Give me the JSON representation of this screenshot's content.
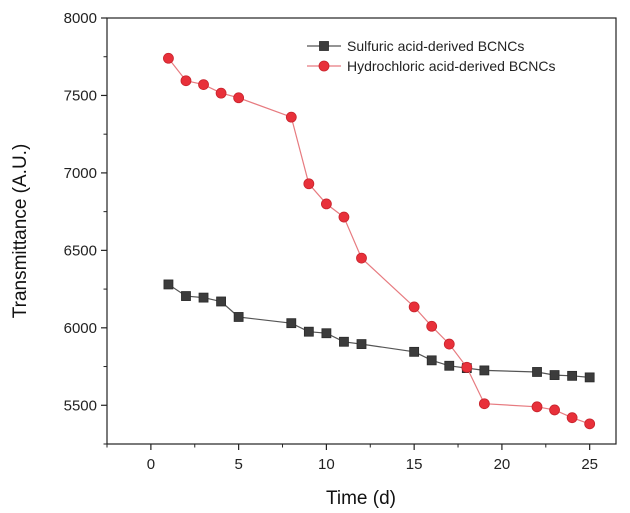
{
  "chart_data": {
    "type": "line",
    "xlabel": "Time (d)",
    "ylabel": "Transmittance (A.U.)",
    "xlim": [
      -2.5,
      26.5
    ],
    "ylim": [
      5250,
      8000
    ],
    "xticks": [
      "0",
      "5",
      "10",
      "15",
      "20",
      "25"
    ],
    "yticks": [
      "5500",
      "6000",
      "6500",
      "7000",
      "7500",
      "8000"
    ],
    "legend_position": "top-right",
    "grid": false,
    "series": [
      {
        "name": "Sulfuric acid-derived BCNCs",
        "marker": "square",
        "color": "#3c3c3c",
        "line_color": "#555555",
        "points": [
          {
            "x": 1,
            "y": 6280
          },
          {
            "x": 2,
            "y": 6205
          },
          {
            "x": 3,
            "y": 6195
          },
          {
            "x": 4,
            "y": 6170
          },
          {
            "x": 5,
            "y": 6070
          },
          {
            "x": 8,
            "y": 6030
          },
          {
            "x": 9,
            "y": 5975
          },
          {
            "x": 10,
            "y": 5965
          },
          {
            "x": 11,
            "y": 5910
          },
          {
            "x": 12,
            "y": 5895
          },
          {
            "x": 15,
            "y": 5845
          },
          {
            "x": 16,
            "y": 5790
          },
          {
            "x": 17,
            "y": 5755
          },
          {
            "x": 18,
            "y": 5740
          },
          {
            "x": 19,
            "y": 5725
          },
          {
            "x": 22,
            "y": 5715
          },
          {
            "x": 23,
            "y": 5695
          },
          {
            "x": 24,
            "y": 5690
          },
          {
            "x": 25,
            "y": 5680
          }
        ]
      },
      {
        "name": "Hydrochloric acid-derived BCNCs",
        "marker": "circle",
        "color": "#e8303a",
        "line_color": "#e77b80",
        "points": [
          {
            "x": 1,
            "y": 7740
          },
          {
            "x": 2,
            "y": 7595
          },
          {
            "x": 3,
            "y": 7570
          },
          {
            "x": 4,
            "y": 7515
          },
          {
            "x": 5,
            "y": 7485
          },
          {
            "x": 8,
            "y": 7360
          },
          {
            "x": 9,
            "y": 6930
          },
          {
            "x": 10,
            "y": 6800
          },
          {
            "x": 11,
            "y": 6715
          },
          {
            "x": 12,
            "y": 6450
          },
          {
            "x": 15,
            "y": 6135
          },
          {
            "x": 16,
            "y": 6010
          },
          {
            "x": 17,
            "y": 5895
          },
          {
            "x": 18,
            "y": 5745
          },
          {
            "x": 19,
            "y": 5510
          },
          {
            "x": 22,
            "y": 5490
          },
          {
            "x": 23,
            "y": 5470
          },
          {
            "x": 24,
            "y": 5420
          },
          {
            "x": 25,
            "y": 5380
          }
        ]
      }
    ]
  }
}
